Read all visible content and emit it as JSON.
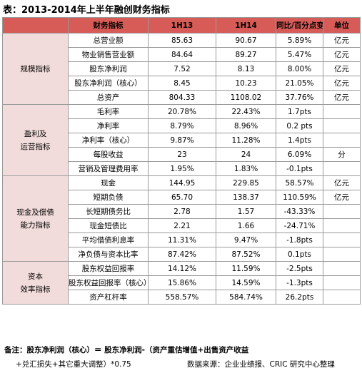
{
  "title": "表：2013-2014年上半年融创财务指标",
  "table": {
    "header": [
      "财务指标",
      "1H13",
      "1H14",
      "同比/百分点变动",
      "单位"
    ],
    "groups": [
      {
        "label": [
          "规模指标"
        ],
        "rows": [
          [
            "总营业额",
            "85.63",
            "90.67",
            "5.89%",
            "亿元"
          ],
          [
            "物业销售营业额",
            "84.64",
            "89.27",
            "5.47%",
            "亿元"
          ],
          [
            "股东净利润",
            "7.52",
            "8.13",
            "8.00%",
            "亿元"
          ],
          [
            "股东净利润（核心）",
            "8.45",
            "10.23",
            "21.05%",
            "亿元"
          ],
          [
            "总资产",
            "804.33",
            "1108.02",
            "37.76%",
            "亿元"
          ]
        ]
      },
      {
        "label": [
          "盈利及",
          "运营指标"
        ],
        "rows": [
          [
            "毛利率",
            "20.78%",
            "22.43%",
            "1.7pts"
          ],
          [
            "净利率",
            "8.79%",
            "8.96%",
            "0.2 pts"
          ],
          [
            "净利率（核心）",
            "9.87%",
            "11.28%",
            "1.4pts"
          ],
          [
            "每股收益",
            "23",
            "24",
            "6.09%",
            "分"
          ],
          [
            "营销及管理费用率",
            "1.95%",
            "1.83%",
            "-0.1pts"
          ]
        ]
      },
      {
        "label": [
          "现金及偿债",
          "能力指标"
        ],
        "rows": [
          [
            "现金",
            "144.95",
            "229.85",
            "58.57%",
            "亿元"
          ],
          [
            "短期负债",
            "65.70",
            "138.37",
            "110.59%",
            "亿元"
          ],
          [
            "长短期债务比",
            "2.78",
            "1.57",
            "-43.33%"
          ],
          [
            "现金短债比",
            "2.21",
            "1.66",
            "-24.71%"
          ],
          [
            "平均借债利息率",
            "11.31%",
            "9.47%",
            "-1.8pts"
          ],
          [
            "净负债与资本比率",
            "87.42%",
            "87.52%",
            "0.1pts"
          ]
        ]
      },
      {
        "label": [
          "资本",
          "效率指标"
        ],
        "rows": [
          [
            "股东权益回报率",
            "14.12%",
            "11.59%",
            "-2.5pts"
          ],
          [
            "股东权益回报率（核心）",
            "15.86%",
            "14.59%",
            "-1.3pts"
          ],
          [
            "资产杠杆率",
            "558.57%",
            "584.74%",
            "26.2pts"
          ]
        ]
      }
    ]
  },
  "note": [
    "备注：股东净利润（核心）＝ 股东净利润-（资产重估增值+出售资产收益",
    "+兑汇损失+其它重大调整）*0.75"
  ],
  "source": "数据来源：企业业绩报、CRIC 研究中心整理"
}
